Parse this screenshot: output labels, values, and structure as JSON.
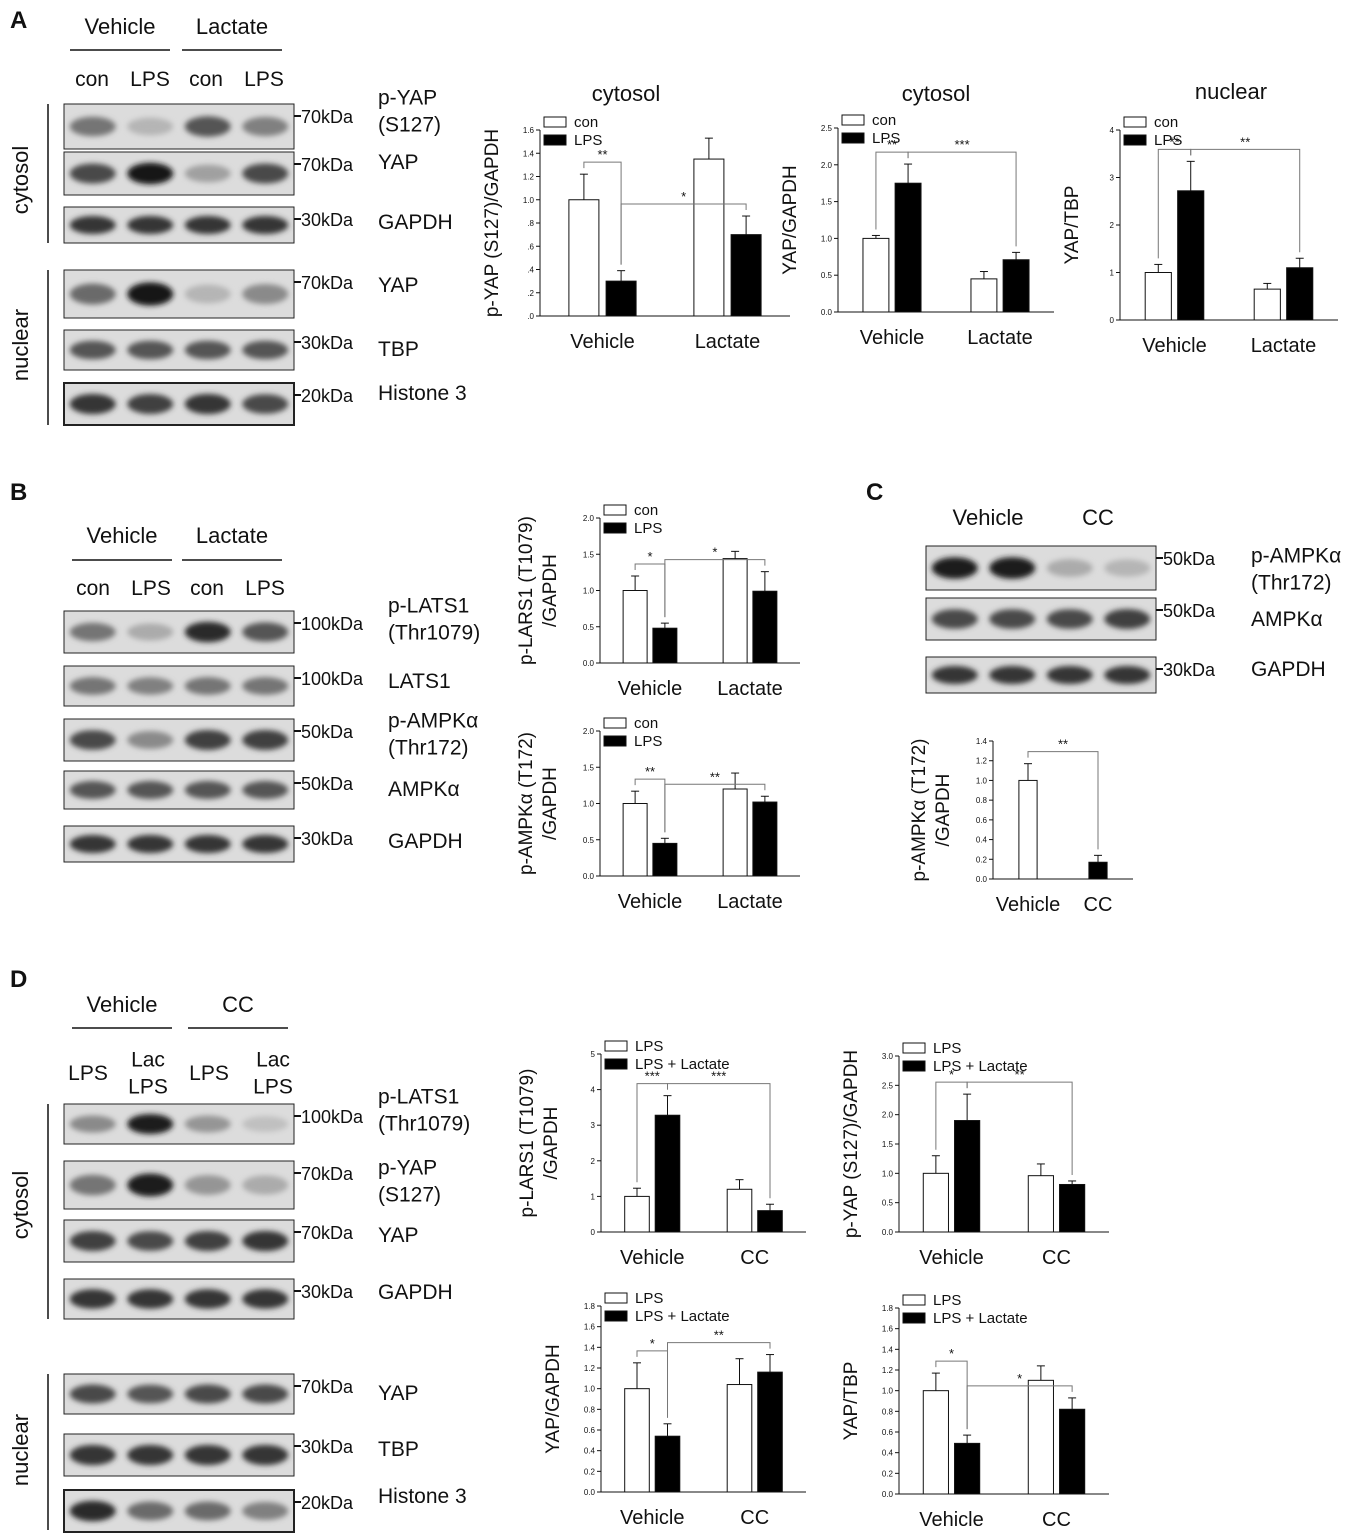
{
  "panels": {
    "A": {
      "letter": "A",
      "groups": [
        "Vehicle",
        "Lactate"
      ],
      "lanes": [
        "con",
        "LPS",
        "con",
        "LPS"
      ],
      "sections": [
        "cytosol",
        "nuclear"
      ],
      "blots": [
        {
          "label": "p-YAP\n(S127)",
          "marker": "70kDa",
          "bands": [
            0.55,
            0.25,
            0.7,
            0.5
          ]
        },
        {
          "label": "YAP",
          "marker": "70kDa",
          "bands": [
            0.75,
            1.0,
            0.35,
            0.75
          ]
        },
        {
          "label": "GAPDH",
          "marker": "30kDa",
          "bands": [
            0.85,
            0.85,
            0.85,
            0.85
          ]
        },
        {
          "label": "YAP",
          "marker": "70kDa",
          "bands": [
            0.6,
            1.0,
            0.25,
            0.45
          ]
        },
        {
          "label": "TBP",
          "marker": "30kDa",
          "bands": [
            0.7,
            0.7,
            0.7,
            0.7
          ]
        },
        {
          "label": "Histone 3",
          "marker": "20kDa",
          "bands": [
            0.85,
            0.8,
            0.85,
            0.75
          ]
        }
      ]
    },
    "B": {
      "letter": "B",
      "groups": [
        "Vehicle",
        "Lactate"
      ],
      "lanes": [
        "con",
        "LPS",
        "con",
        "LPS"
      ],
      "blots": [
        {
          "label": "p-LATS1\n(Thr1079)",
          "marker": "100kDa",
          "bands": [
            0.55,
            0.3,
            0.9,
            0.7
          ]
        },
        {
          "label": "LATS1",
          "marker": "100kDa",
          "bands": [
            0.55,
            0.5,
            0.55,
            0.55
          ]
        },
        {
          "label": "p-AMPKα\n(Thr172)",
          "marker": "50kDa",
          "bands": [
            0.75,
            0.45,
            0.8,
            0.8
          ]
        },
        {
          "label": "AMPKα",
          "marker": "50kDa",
          "bands": [
            0.7,
            0.7,
            0.7,
            0.7
          ]
        },
        {
          "label": "GAPDH",
          "marker": "30kDa",
          "bands": [
            0.85,
            0.85,
            0.85,
            0.85
          ]
        }
      ]
    },
    "C": {
      "letter": "C",
      "groups": [
        "Vehicle",
        "CC"
      ],
      "blots": [
        {
          "label": "p-AMPKα\n(Thr172)",
          "marker": "50kDa",
          "bands": [
            0.95,
            0.95,
            0.3,
            0.25
          ]
        },
        {
          "label": "AMPKα",
          "marker": "50kDa",
          "bands": [
            0.75,
            0.75,
            0.75,
            0.8
          ]
        },
        {
          "label": "GAPDH",
          "marker": "30kDa",
          "bands": [
            0.85,
            0.85,
            0.85,
            0.85
          ]
        }
      ]
    },
    "D": {
      "letter": "D",
      "groups": [
        "Vehicle",
        "CC"
      ],
      "lanes": [
        "LPS",
        "Lac\nLPS",
        "LPS",
        "Lac\nLPS"
      ],
      "sections": [
        "cytosol",
        "nuclear"
      ],
      "blots": [
        {
          "label": "p-LATS1\n(Thr1079)",
          "marker": "100kDa",
          "bands": [
            0.45,
            0.95,
            0.4,
            0.2
          ]
        },
        {
          "label": "p-YAP\n(S127)",
          "marker": "70kDa",
          "bands": [
            0.55,
            0.95,
            0.4,
            0.3
          ]
        },
        {
          "label": "YAP",
          "marker": "70kDa",
          "bands": [
            0.8,
            0.75,
            0.8,
            0.85
          ]
        },
        {
          "label": "GAPDH",
          "marker": "30kDa",
          "bands": [
            0.85,
            0.85,
            0.85,
            0.85
          ]
        },
        {
          "label": "YAP",
          "marker": "70kDa",
          "bands": [
            0.75,
            0.7,
            0.75,
            0.75
          ]
        },
        {
          "label": "TBP",
          "marker": "30kDa",
          "bands": [
            0.85,
            0.85,
            0.85,
            0.85
          ]
        },
        {
          "label": "Histone 3",
          "marker": "20kDa",
          "bands": [
            0.9,
            0.6,
            0.6,
            0.5
          ]
        }
      ]
    }
  },
  "chart_data": [
    {
      "id": "A1",
      "type": "bar",
      "title": "cytosol",
      "ylabel": "p-YAP (S127)/GAPDH",
      "categories": [
        "Vehicle",
        "Lactate"
      ],
      "ylim": [
        0,
        1.6
      ],
      "yticks": [
        ".0",
        ".2",
        ".4",
        ".6",
        ".8",
        "1.0",
        "1.2",
        "1.4",
        "1.6"
      ],
      "legend": [
        "con",
        "LPS"
      ],
      "series": [
        {
          "name": "con",
          "values": [
            1.0,
            1.35
          ],
          "errors": [
            0.22,
            0.18
          ]
        },
        {
          "name": "LPS",
          "values": [
            0.3,
            0.7
          ],
          "errors": [
            0.09,
            0.16
          ]
        }
      ],
      "sig": [
        {
          "label": "**",
          "from": [
            0,
            0
          ],
          "to": [
            0,
            1
          ]
        },
        {
          "label": "*",
          "from": [
            0,
            1
          ],
          "to": [
            1,
            1
          ]
        }
      ]
    },
    {
      "id": "A2",
      "type": "bar",
      "title": "cytosol",
      "ylabel": "YAP/GAPDH",
      "categories": [
        "Vehicle",
        "Lactate"
      ],
      "ylim": [
        0,
        2.5
      ],
      "yticks": [
        "0.0",
        "0.5",
        "1.0",
        "1.5",
        "2.0",
        "2.5"
      ],
      "legend": [
        "con",
        "LPS"
      ],
      "series": [
        {
          "name": "con",
          "values": [
            1.0,
            0.45
          ],
          "errors": [
            0.04,
            0.1
          ]
        },
        {
          "name": "LPS",
          "values": [
            1.75,
            0.71
          ],
          "errors": [
            0.26,
            0.1
          ]
        }
      ],
      "sig": [
        {
          "label": "**",
          "from": [
            0,
            0
          ],
          "to": [
            0,
            1
          ]
        },
        {
          "label": "***",
          "from": [
            0,
            1
          ],
          "to": [
            1,
            1
          ]
        }
      ]
    },
    {
      "id": "A3",
      "type": "bar",
      "title": "nuclear",
      "ylabel": "YAP/TBP",
      "categories": [
        "Vehicle",
        "Lactate"
      ],
      "ylim": [
        0,
        4
      ],
      "yticks": [
        "0",
        "1",
        "2",
        "3",
        "4"
      ],
      "legend": [
        "con",
        "LPS"
      ],
      "series": [
        {
          "name": "con",
          "values": [
            1.0,
            0.65
          ],
          "errors": [
            0.17,
            0.12
          ]
        },
        {
          "name": "LPS",
          "values": [
            2.72,
            1.1
          ],
          "errors": [
            0.62,
            0.2
          ]
        }
      ],
      "sig": [
        {
          "label": "**",
          "from": [
            0,
            0
          ],
          "to": [
            0,
            1
          ]
        },
        {
          "label": "**",
          "from": [
            0,
            1
          ],
          "to": [
            1,
            1
          ]
        }
      ]
    },
    {
      "id": "B1",
      "type": "bar",
      "title": "",
      "ylabel": "p-LARS1 (T1079)\n/GAPDH",
      "categories": [
        "Vehicle",
        "Lactate"
      ],
      "ylim": [
        0,
        2.0
      ],
      "yticks": [
        "0.0",
        "0.5",
        "1.0",
        "1.5",
        "2.0"
      ],
      "legend": [
        "con",
        "LPS"
      ],
      "series": [
        {
          "name": "con",
          "values": [
            1.0,
            1.44
          ],
          "errors": [
            0.2,
            0.1
          ]
        },
        {
          "name": "LPS",
          "values": [
            0.48,
            0.99
          ],
          "errors": [
            0.07,
            0.27
          ]
        }
      ],
      "sig": [
        {
          "label": "*",
          "from": [
            0,
            0
          ],
          "to": [
            0,
            1
          ]
        },
        {
          "label": "*",
          "from": [
            0,
            1
          ],
          "to": [
            1,
            1
          ]
        }
      ]
    },
    {
      "id": "B2",
      "type": "bar",
      "title": "",
      "ylabel": "p-AMPKα (T172)\n/GAPDH",
      "categories": [
        "Vehicle",
        "Lactate"
      ],
      "ylim": [
        0,
        2.0
      ],
      "yticks": [
        "0.0",
        "0.5",
        "1.0",
        "1.5",
        "2.0"
      ],
      "legend": [
        "con",
        "LPS"
      ],
      "series": [
        {
          "name": "con",
          "values": [
            1.0,
            1.2
          ],
          "errors": [
            0.17,
            0.22
          ]
        },
        {
          "name": "LPS",
          "values": [
            0.45,
            1.02
          ],
          "errors": [
            0.07,
            0.08
          ]
        }
      ],
      "sig": [
        {
          "label": "**",
          "from": [
            0,
            0
          ],
          "to": [
            0,
            1
          ]
        },
        {
          "label": "**",
          "from": [
            0,
            1
          ],
          "to": [
            1,
            1
          ]
        }
      ]
    },
    {
      "id": "C1",
      "type": "bar",
      "title": "",
      "ylabel": "p-AMPKα (T172)\n/GAPDH",
      "categories": [
        "Vehicle",
        "CC"
      ],
      "ylim": [
        0,
        1.4
      ],
      "yticks": [
        "0.0",
        "0.2",
        "0.4",
        "0.6",
        "0.8",
        "1.0",
        "1.2",
        "1.4"
      ],
      "legend": [],
      "series": [
        {
          "name": "",
          "values": [
            1.0,
            0.17
          ],
          "errors": [
            0.17,
            0.07
          ],
          "fills": [
            "#ffffff",
            "#000000"
          ]
        }
      ],
      "sig": [
        {
          "label": "**",
          "from": [
            0,
            0
          ],
          "to": [
            1,
            0
          ]
        }
      ]
    },
    {
      "id": "D1",
      "type": "bar",
      "title": "",
      "ylabel": "p-LARS1 (T1079)\n/GAPDH",
      "categories": [
        "Vehicle",
        "CC"
      ],
      "ylim": [
        0,
        5
      ],
      "yticks": [
        "0",
        "1",
        "2",
        "3",
        "4",
        "5"
      ],
      "legend": [
        "LPS",
        "LPS + Lactate"
      ],
      "series": [
        {
          "name": "LPS",
          "values": [
            1.0,
            1.2
          ],
          "errors": [
            0.23,
            0.27
          ]
        },
        {
          "name": "LPS + Lactate",
          "values": [
            3.28,
            0.6
          ],
          "errors": [
            0.55,
            0.18
          ]
        }
      ],
      "sig": [
        {
          "label": "***",
          "from": [
            0,
            0
          ],
          "to": [
            0,
            1
          ]
        },
        {
          "label": "***",
          "from": [
            0,
            1
          ],
          "to": [
            1,
            1
          ]
        }
      ]
    },
    {
      "id": "D2",
      "type": "bar",
      "title": "",
      "ylabel": "p-YAP (S127)/GAPDH",
      "categories": [
        "Vehicle",
        "CC"
      ],
      "ylim": [
        0,
        3.0
      ],
      "yticks": [
        "0.0",
        "0.5",
        "1.0",
        "1.5",
        "2.0",
        "2.5",
        "3.0"
      ],
      "legend": [
        "LPS",
        "LPS + Lactate"
      ],
      "series": [
        {
          "name": "LPS",
          "values": [
            1.0,
            0.96
          ],
          "errors": [
            0.3,
            0.2
          ]
        },
        {
          "name": "LPS + Lactate",
          "values": [
            1.9,
            0.81
          ],
          "errors": [
            0.45,
            0.06
          ]
        }
      ],
      "sig": [
        {
          "label": "*",
          "from": [
            0,
            0
          ],
          "to": [
            0,
            1
          ]
        },
        {
          "label": "**",
          "from": [
            0,
            1
          ],
          "to": [
            1,
            1
          ]
        }
      ]
    },
    {
      "id": "D3",
      "type": "bar",
      "title": "",
      "ylabel": "YAP/GAPDH",
      "categories": [
        "Vehicle",
        "CC"
      ],
      "ylim": [
        0,
        1.8
      ],
      "yticks": [
        "0.0",
        "0.2",
        "0.4",
        "0.6",
        "0.8",
        "1.0",
        "1.2",
        "1.4",
        "1.6",
        "1.8"
      ],
      "legend": [
        "LPS",
        "LPS + Lactate"
      ],
      "series": [
        {
          "name": "LPS",
          "values": [
            1.0,
            1.04
          ],
          "errors": [
            0.25,
            0.25
          ]
        },
        {
          "name": "LPS + Lactate",
          "values": [
            0.54,
            1.16
          ],
          "errors": [
            0.12,
            0.17
          ]
        }
      ],
      "sig": [
        {
          "label": "*",
          "from": [
            0,
            0
          ],
          "to": [
            0,
            1
          ]
        },
        {
          "label": "**",
          "from": [
            0,
            1
          ],
          "to": [
            1,
            1
          ]
        }
      ]
    },
    {
      "id": "D4",
      "type": "bar",
      "title": "",
      "ylabel": "YAP/TBP",
      "categories": [
        "Vehicle",
        "CC"
      ],
      "ylim": [
        0,
        1.8
      ],
      "yticks": [
        "0.0",
        "0.2",
        "0.4",
        "0.6",
        "0.8",
        "1.0",
        "1.2",
        "1.4",
        "1.6",
        "1.8"
      ],
      "legend": [
        "LPS",
        "LPS + Lactate"
      ],
      "series": [
        {
          "name": "LPS",
          "values": [
            1.0,
            1.1
          ],
          "errors": [
            0.17,
            0.14
          ]
        },
        {
          "name": "LPS + Lactate",
          "values": [
            0.49,
            0.82
          ],
          "errors": [
            0.08,
            0.11
          ]
        }
      ],
      "sig": [
        {
          "label": "*",
          "from": [
            0,
            0
          ],
          "to": [
            0,
            1
          ]
        },
        {
          "label": "*",
          "from": [
            0,
            1
          ],
          "to": [
            1,
            1
          ]
        }
      ]
    }
  ]
}
